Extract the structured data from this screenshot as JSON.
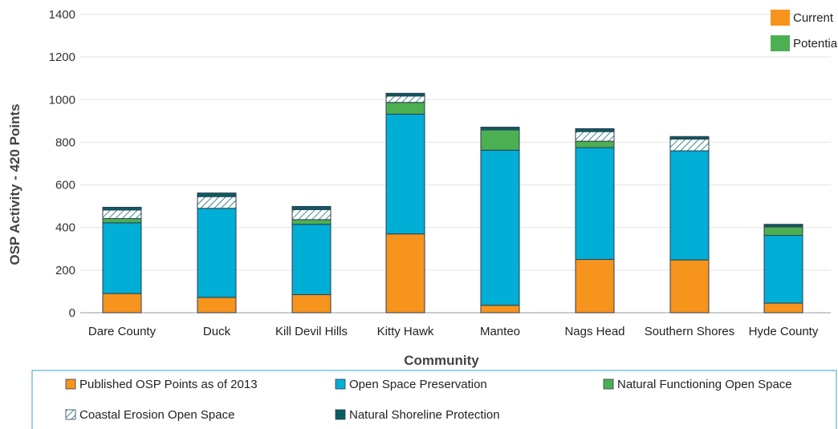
{
  "chart_data": {
    "type": "bar",
    "stacked": true,
    "title": "",
    "xlabel": "Community",
    "ylabel": "OSP  Activity - 420 Points",
    "ylim": [
      0,
      1400
    ],
    "yticks": [
      0,
      200,
      400,
      600,
      800,
      1000,
      1200,
      1400
    ],
    "grid": true,
    "categories": [
      "Dare County",
      "Duck",
      "Kill Devil Hills",
      "Kitty Hawk",
      "Manteo",
      "Nags Head",
      "Southern Shores",
      "Hyde County"
    ],
    "series": [
      {
        "name": "Published OSP Points as of 2013",
        "color": "#f7941d",
        "pattern": "solid",
        "values": [
          90,
          72,
          85,
          370,
          35,
          250,
          248,
          45
        ]
      },
      {
        "name": "Open Space Preservation",
        "color": "#00aed6",
        "pattern": "solid",
        "values": [
          332,
          418,
          330,
          562,
          728,
          525,
          512,
          318
        ]
      },
      {
        "name": "Natural Functioning Open Space",
        "color": "#4cb052",
        "pattern": "solid",
        "values": [
          20,
          0,
          22,
          55,
          95,
          30,
          0,
          40
        ]
      },
      {
        "name": "Coastal Erosion Open Space",
        "color": "#0e6b6b",
        "pattern": "hatch",
        "values": [
          40,
          55,
          47,
          30,
          0,
          45,
          55,
          0
        ]
      },
      {
        "name": "Natural Shoreline Protection",
        "color": "#0b5c61",
        "pattern": "solid",
        "values": [
          13,
          17,
          15,
          13,
          13,
          14,
          12,
          12
        ]
      }
    ],
    "top_legend": [
      {
        "label": "Current",
        "color": "#f7941d"
      },
      {
        "label": "Potentia",
        "color": "#4cb052"
      }
    ],
    "legend_position": "bottom"
  }
}
